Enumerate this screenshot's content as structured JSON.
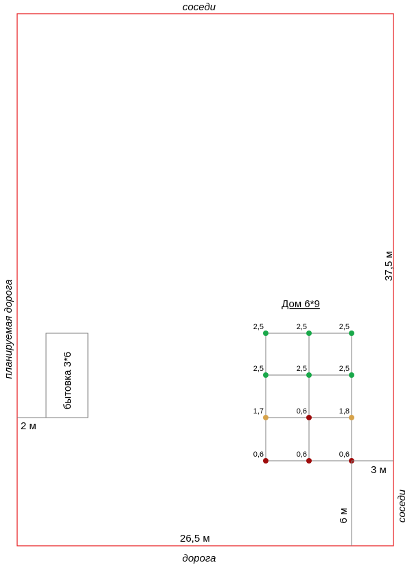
{
  "sides": {
    "top": "соседи",
    "bottom": "дорога",
    "left": "планируемая дорога",
    "right": "соседи"
  },
  "dimensions": {
    "width": "26,5 м",
    "depth": "37,5 м",
    "shed_offset": "2 м",
    "house_side_offset": "3 м",
    "house_front_offset": "6 м"
  },
  "shed": {
    "label": "бытовка 3*6"
  },
  "house": {
    "title": "Дом 6*9",
    "rows": [
      {
        "points": [
          {
            "value": "2,5",
            "status": "green"
          },
          {
            "value": "2,5",
            "status": "green"
          },
          {
            "value": "2,5",
            "status": "green"
          }
        ]
      },
      {
        "points": [
          {
            "value": "2,5",
            "status": "green"
          },
          {
            "value": "2,5",
            "status": "green"
          },
          {
            "value": "2,5",
            "status": "green"
          }
        ]
      },
      {
        "points": [
          {
            "value": "1,7",
            "status": "tan"
          },
          {
            "value": "0,6",
            "status": "red"
          },
          {
            "value": "1,8",
            "status": "tan"
          }
        ]
      },
      {
        "points": [
          {
            "value": "0,6",
            "status": "red"
          },
          {
            "value": "0,6",
            "status": "red"
          },
          {
            "value": "0,6",
            "status": "red"
          }
        ]
      }
    ]
  },
  "colors": {
    "boundary": "#e8262a",
    "green": "#1aa84a",
    "tan": "#d6a24a",
    "red": "#9e0b0b"
  }
}
